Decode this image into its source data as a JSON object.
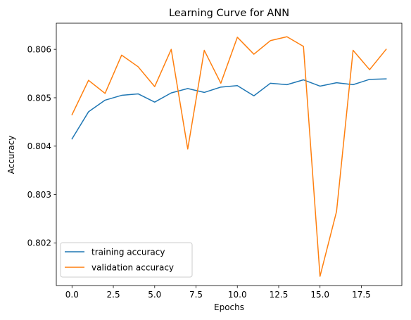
{
  "chart_data": {
    "type": "line",
    "title": "Learning Curve for ANN",
    "xlabel": "Epochs",
    "ylabel": "Accuracy",
    "xlim": [
      -0.95,
      19.95
    ],
    "ylim": [
      0.80112,
      0.80654
    ],
    "xticks": [
      0.0,
      2.5,
      5.0,
      7.5,
      10.0,
      12.5,
      15.0,
      17.5
    ],
    "xtick_labels": [
      "0.0",
      "2.5",
      "5.0",
      "7.5",
      "10.0",
      "12.5",
      "15.0",
      "17.5"
    ],
    "yticks": [
      0.802,
      0.803,
      0.804,
      0.805,
      0.806
    ],
    "ytick_labels": [
      "0.802",
      "0.803",
      "0.804",
      "0.805",
      "0.806"
    ],
    "grid": false,
    "legend_position": "lower-left",
    "x": [
      0,
      1,
      2,
      3,
      4,
      5,
      6,
      7,
      8,
      9,
      10,
      11,
      12,
      13,
      14,
      15,
      16,
      17,
      18,
      19
    ],
    "series": [
      {
        "name": "training accuracy",
        "color": "#1f77b4",
        "values": [
          0.80415,
          0.80471,
          0.80495,
          0.80505,
          0.80508,
          0.80491,
          0.8051,
          0.80519,
          0.80511,
          0.80522,
          0.80525,
          0.80504,
          0.8053,
          0.80527,
          0.80537,
          0.80524,
          0.80531,
          0.80527,
          0.80538,
          0.80539
        ]
      },
      {
        "name": "validation accuracy",
        "color": "#ff7f0e",
        "values": [
          0.80465,
          0.80536,
          0.80509,
          0.80588,
          0.80564,
          0.80523,
          0.806,
          0.80394,
          0.80598,
          0.8053,
          0.80625,
          0.8059,
          0.80618,
          0.80626,
          0.80606,
          0.80131,
          0.80265,
          0.80598,
          0.80558,
          0.806
        ]
      }
    ]
  }
}
